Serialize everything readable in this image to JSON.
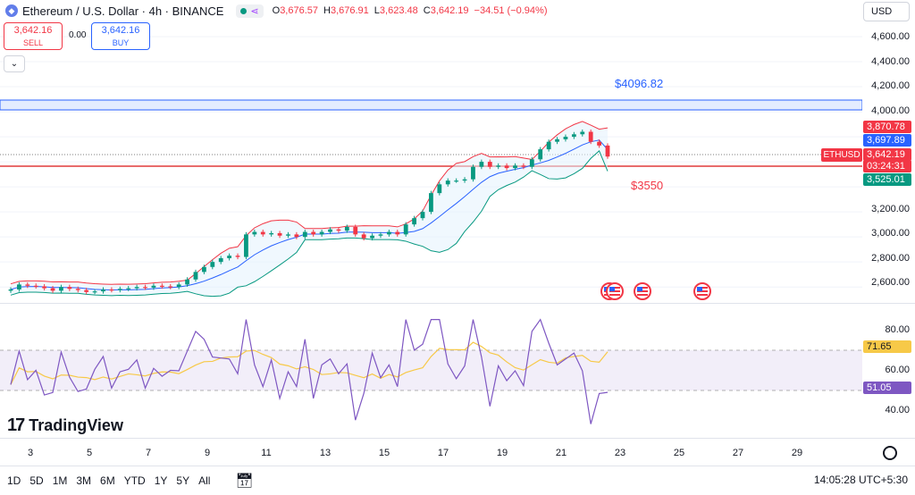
{
  "header": {
    "symbol_icon": "ethereum-icon",
    "title": "Ethereum / U.S. Dollar · 4h · BINANCE",
    "ohlc": {
      "o_label": "O",
      "o_value": "3,676.57",
      "h_label": "H",
      "h_value": "3,676.91",
      "l_label": "L",
      "l_value": "3,623.48",
      "c_label": "C",
      "c_value": "3,642.19",
      "change": "−34.51 (−0.94%)"
    }
  },
  "trade": {
    "sell_price": "3,642.16",
    "sell_label": "SELL",
    "spread": "0.00",
    "buy_price": "3,642.16",
    "buy_label": "BUY"
  },
  "currency": "USD",
  "price_scale": [
    "4,600.00",
    "4,400.00",
    "4,200.00",
    "4,000.00",
    "3,200.00",
    "3,000.00",
    "2,800.00",
    "2,600.00"
  ],
  "price_badges": {
    "upper_band": "3,870.78",
    "middle_band": "3,697.89",
    "last_price": "3,642.19",
    "countdown": "03:24:31",
    "lower_band": "3,525.01",
    "symbol_tag": "ETHUSD"
  },
  "levels": {
    "resistance_label": "$4096.82",
    "support_label": "$3550"
  },
  "rsi": {
    "scale": [
      "80.00",
      "60.00",
      "40.00"
    ],
    "ma_value": "71.65",
    "rsi_value": "51.05"
  },
  "date_axis": [
    "3",
    "5",
    "7",
    "9",
    "11",
    "13",
    "15",
    "17",
    "19",
    "21",
    "23",
    "25",
    "27",
    "29"
  ],
  "logo_text": "TradingView",
  "ranges": [
    "1D",
    "5D",
    "1M",
    "3M",
    "6M",
    "YTD",
    "1Y",
    "5Y",
    "All"
  ],
  "time_readout": "14:05:28 UTC+5:30",
  "colors": {
    "up": "#089981",
    "down": "#f23645",
    "accent": "#2962ff",
    "rsi_line": "#7e57c2",
    "rsi_ma": "#f7c948",
    "bb_upper": "#f23645",
    "bb_basis": "#2962ff",
    "bb_lower": "#089981"
  },
  "chart_data": {
    "type": "candlestick",
    "timeframe": "4h",
    "price_ylim": [
      2480,
      4700
    ],
    "closes": [
      2580,
      2620,
      2610,
      2605,
      2590,
      2570,
      2600,
      2585,
      2575,
      2560,
      2565,
      2580,
      2575,
      2585,
      2590,
      2600,
      2595,
      2610,
      2605,
      2600,
      2620,
      2660,
      2720,
      2760,
      2800,
      2830,
      2850,
      2840,
      3020,
      3040,
      3020,
      3030,
      3010,
      3020,
      3000,
      3040,
      3020,
      3040,
      3060,
      3050,
      3080,
      3020,
      2990,
      3010,
      3020,
      3040,
      3020,
      3100,
      3150,
      3200,
      3350,
      3420,
      3450,
      3450,
      3460,
      3560,
      3600,
      3560,
      3570,
      3550,
      3570,
      3560,
      3620,
      3700,
      3760,
      3780,
      3800,
      3820,
      3840,
      3760,
      3730,
      3642
    ],
    "bollinger": {
      "upper_last": 3870.78,
      "basis_last": 3697.89,
      "lower_last": 3525.01
    },
    "horizontal_levels": [
      {
        "label": "$4096.82",
        "value": 4096.82
      },
      {
        "label": "$3550",
        "value": 3550
      }
    ],
    "rsi_ylim": [
      28,
      96
    ],
    "rsi_levels": [
      70,
      50
    ],
    "rsi_last": 51.05,
    "rsi_ma_last": 71.65
  }
}
